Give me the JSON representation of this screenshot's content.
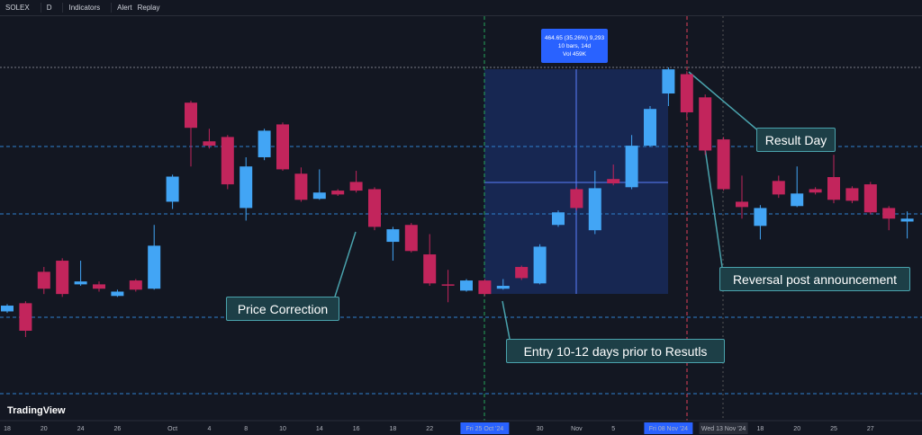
{
  "toolbar": {
    "symbol": "SOLEX",
    "interval": "D",
    "indicators": "Indicators",
    "alert": "Alert",
    "replay": "Replay"
  },
  "measure": {
    "line1": "464.65 (35.26%) 9,293",
    "line2": "10 bars, 14d",
    "line3": "Vol 459K"
  },
  "annotations": [
    "Price Correction",
    "Entry 10-12 days prior to Resutls",
    "Result Day",
    "Reversal post announcement"
  ],
  "logo": "TradingView",
  "chart_data": {
    "type": "candlestick",
    "categories": [
      "18",
      null,
      "20",
      null,
      "24",
      null,
      "26",
      null,
      null,
      "Oct",
      null,
      "4",
      null,
      "8",
      null,
      "10",
      null,
      "14",
      null,
      "16",
      null,
      "18",
      null,
      "22",
      null,
      null,
      "Fri 25 Oct '24",
      null,
      null,
      "30",
      null,
      "Nov",
      null,
      "5",
      null,
      null,
      "Fri 08 Nov '24",
      null,
      null,
      "Wed 13 Nov '24",
      null,
      "18",
      null,
      "20",
      null,
      "25",
      null,
      "27",
      null,
      null
    ],
    "open": [
      1281,
      1298,
      1363,
      1386,
      1337,
      1337,
      1313,
      1345,
      1328,
      1508,
      1713,
      1633,
      1642,
      1495,
      1600,
      1668,
      1566,
      1514,
      1531,
      1549,
      1534,
      1425,
      1460,
      1399,
      1337,
      1324,
      1345,
      1328,
      1373,
      1339,
      1460,
      1534,
      1449,
      1555,
      1538,
      1624,
      1732,
      1772,
      1724,
      1637,
      1508,
      1458,
      1551,
      1499,
      1534,
      1559,
      1536,
      1544,
      1495,
      1467
    ],
    "high": [
      1296,
      1302,
      1373,
      1391,
      1386,
      1343,
      1326,
      1348,
      1460,
      1564,
      1717,
      1659,
      1646,
      1600,
      1659,
      1672,
      1579,
      1575,
      1534,
      1572,
      1538,
      1456,
      1464,
      1441,
      1367,
      1348,
      1348,
      1348,
      1376,
      1420,
      1490,
      1538,
      1572,
      1585,
      1646,
      1706,
      1786,
      1778,
      1730,
      1642,
      1562,
      1501,
      1562,
      1581,
      1538,
      1605,
      1540,
      1549,
      1499,
      1488
    ],
    "low": [
      1278,
      1228,
      1317,
      1311,
      1334,
      1322,
      1311,
      1322,
      1326,
      1493,
      1581,
      1618,
      1534,
      1469,
      1594,
      1572,
      1508,
      1512,
      1520,
      1527,
      1449,
      1386,
      1403,
      1334,
      1300,
      1322,
      1313,
      1326,
      1346,
      1337,
      1456,
      1490,
      1441,
      1542,
      1534,
      1622,
      1706,
      1683,
      1605,
      1531,
      1473,
      1430,
      1516,
      1497,
      1523,
      1505,
      1505,
      1482,
      1449,
      1432
    ],
    "close": [
      1293,
      1241,
      1328,
      1317,
      1343,
      1328,
      1322,
      1326,
      1417,
      1560,
      1661,
      1624,
      1544,
      1581,
      1655,
      1575,
      1512,
      1527,
      1523,
      1531,
      1456,
      1451,
      1406,
      1339,
      1335,
      1345,
      1317,
      1334,
      1350,
      1415,
      1486,
      1495,
      1536,
      1546,
      1624,
      1700,
      1782,
      1693,
      1614,
      1534,
      1497,
      1495,
      1523,
      1525,
      1527,
      1512,
      1510,
      1486,
      1473,
      1473
    ],
    "up_color": "#42a5f5",
    "down_color": "#c2255c",
    "ylim": [
      1055,
      1892
    ]
  }
}
